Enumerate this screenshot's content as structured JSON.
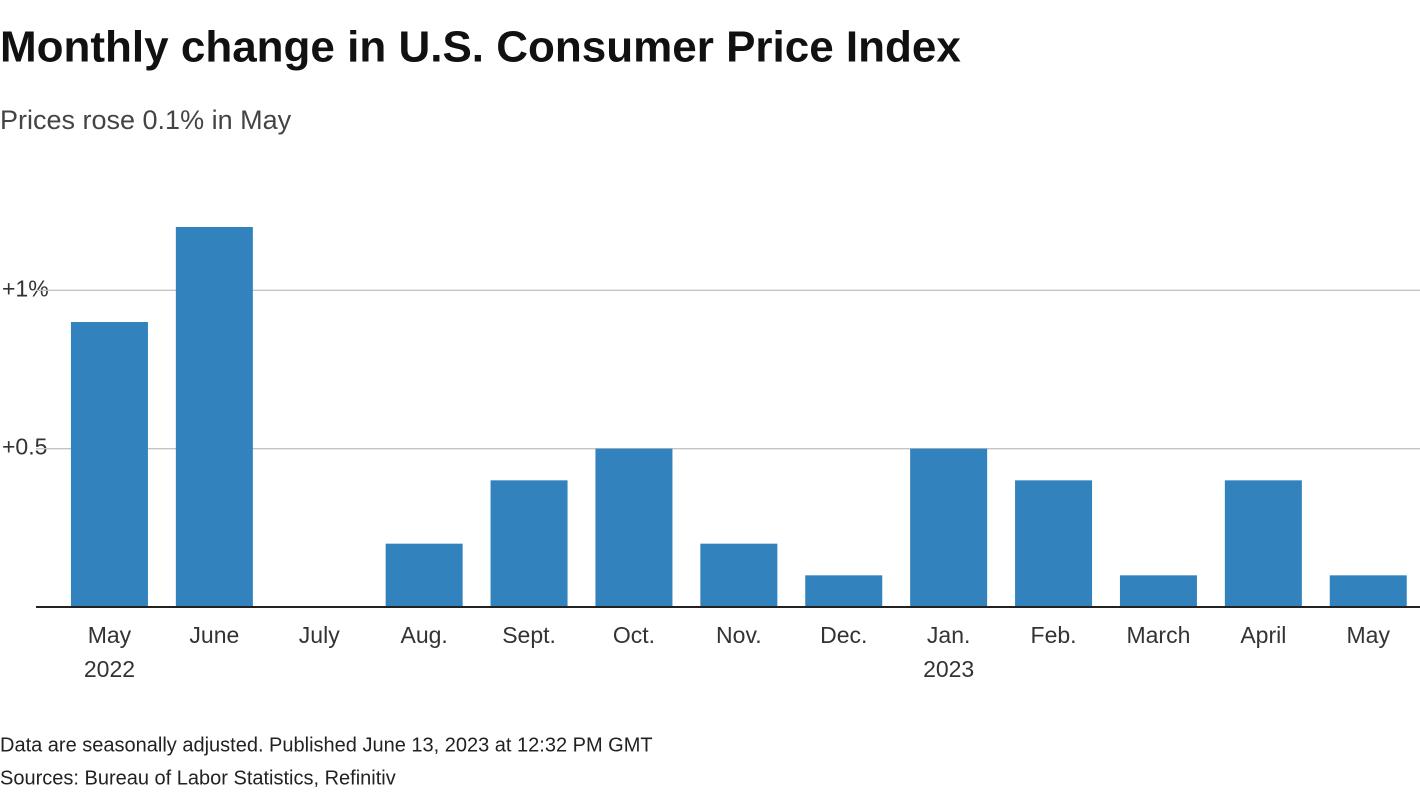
{
  "chart_data": {
    "type": "bar",
    "title": "Monthly change in U.S. Consumer Price Index",
    "subtitle": "Prices rose 0.1% in May",
    "categories": [
      "May\n2022",
      "June",
      "July",
      "Aug.",
      "Sept.",
      "Oct.",
      "Nov.",
      "Dec.",
      "Jan.\n2023",
      "Feb.",
      "March",
      "April",
      "May"
    ],
    "values": [
      0.9,
      1.2,
      0,
      0.2,
      0.4,
      0.5,
      0.2,
      0.1,
      0.5,
      0.4,
      0.1,
      0.4,
      0.1
    ],
    "color": "#3282bd",
    "ylim": [
      0,
      1.2
    ],
    "yticks": [
      {
        "value": 0.5,
        "label": "+0.5"
      },
      {
        "value": 1,
        "label": "+1%"
      }
    ],
    "grid": true,
    "note": "Data are seasonally adjusted. Published June 13, 2023 at 12:32 PM GMT",
    "source": "Sources: Bureau of Labor Statistics, Refinitiv"
  }
}
